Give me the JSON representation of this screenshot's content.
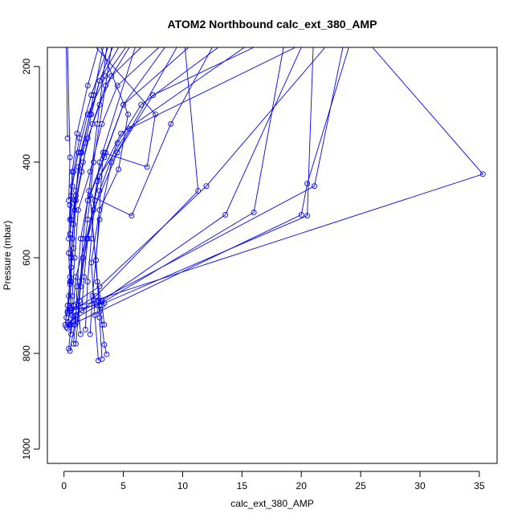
{
  "chart_data": {
    "type": "line",
    "title": "ATOM2 Northbound calc_ext_380_AMP",
    "xlabel": "calc_ext_380_AMP",
    "ylabel": "Pressure (mbar)",
    "xlim": [
      -1.4,
      36.5
    ],
    "ylim": [
      1030,
      160
    ],
    "y_reversed": true,
    "x_ticks": [
      0,
      5,
      10,
      15,
      20,
      25,
      30,
      35
    ],
    "y_ticks": [
      200,
      400,
      600,
      800,
      1000
    ],
    "grid": false,
    "legend": "none",
    "series_color": "#0000ff",
    "marker": "open-circle",
    "series": [
      {
        "x": [
          0.1,
          0.3,
          0.5,
          0.4,
          0.6,
          1.0,
          1.2,
          1.8,
          2.3,
          3.0,
          4.1
        ],
        "y": [
          740,
          700,
          650,
          590,
          520,
          470,
          410,
          360,
          300,
          230,
          160
        ]
      },
      {
        "x": [
          0.2,
          0.4,
          0.5,
          0.7,
          0.9,
          1.5,
          2.0,
          3.0,
          4.0,
          6.5
        ],
        "y": [
          725,
          680,
          640,
          560,
          500,
          420,
          350,
          280,
          220,
          160
        ]
      },
      {
        "x": [
          0.3,
          0.5,
          0.6,
          0.8,
          1.0,
          1.6,
          2.4,
          3.5,
          5.5
        ],
        "y": [
          748,
          710,
          620,
          580,
          480,
          400,
          320,
          240,
          160
        ]
      },
      {
        "x": [
          0.4,
          0.6,
          0.7,
          0.9,
          1.2,
          2.2,
          3.2,
          4.5,
          8.0
        ],
        "y": [
          790,
          740,
          680,
          600,
          500,
          420,
          320,
          240,
          160
        ]
      },
      {
        "x": [
          0.8,
          1.0,
          1.1,
          1.4,
          2.0,
          3.5,
          5.0,
          10.5
        ],
        "y": [
          780,
          730,
          660,
          560,
          480,
          380,
          280,
          160
        ]
      },
      {
        "x": [
          0.5,
          0.9,
          1.3,
          2.0,
          3.0,
          4.5,
          6.5,
          13.0
        ],
        "y": [
          795,
          740,
          650,
          560,
          460,
          360,
          280,
          160
        ]
      },
      {
        "x": [
          0.6,
          0.8,
          1.0,
          2.5,
          4.5,
          7.5,
          16.0
        ],
        "y": [
          760,
          700,
          640,
          500,
          380,
          260,
          160
        ]
      },
      {
        "x": [
          2.9,
          2.6,
          2.3,
          3.0,
          4.6,
          5.4,
          3.1
        ],
        "y": [
          815,
          720,
          610,
          500,
          415,
          300,
          160
        ]
      },
      {
        "x": [
          3.2,
          3.0,
          2.7,
          3.3,
          7.0,
          7.7,
          2.7
        ],
        "y": [
          812,
          725,
          605,
          380,
          410,
          300,
          160
        ]
      },
      {
        "x": [
          3.6,
          3.4,
          3.2,
          3.0,
          2.2,
          5.7,
          9.0,
          12.5
        ],
        "y": [
          802,
          782,
          740,
          700,
          470,
          512,
          320,
          160
        ]
      },
      {
        "x": [
          3.4,
          3.2,
          2.8,
          2.2,
          3.4,
          5.0,
          8.5
        ],
        "y": [
          740,
          700,
          650,
          470,
          390,
          280,
          160
        ]
      },
      {
        "x": [
          0.3,
          2.7,
          11.3,
          10.2
        ],
        "y": [
          715,
          680,
          460,
          160
        ]
      },
      {
        "x": [
          0.5,
          3.0,
          12.0,
          22.0
        ],
        "y": [
          700,
          660,
          450,
          160
        ]
      },
      {
        "x": [
          0.7,
          3.2,
          13.6,
          20.0
        ],
        "y": [
          720,
          690,
          510,
          160
        ]
      },
      {
        "x": [
          0.4,
          2.8,
          16.0,
          18.5
        ],
        "y": [
          735,
          700,
          505,
          160
        ]
      },
      {
        "x": [
          0.2,
          3.0,
          20.0,
          20.5,
          24.0
        ],
        "y": [
          745,
          712,
          510,
          445,
          160
        ]
      },
      {
        "x": [
          0.6,
          3.4,
          20.5,
          21.0
        ],
        "y": [
          710,
          695,
          512,
          160
        ]
      },
      {
        "x": [
          0.5,
          2.9,
          21.1,
          23.5
        ],
        "y": [
          705,
          690,
          450,
          160
        ]
      },
      {
        "x": [
          0.4,
          1.0,
          2.5,
          35.3,
          26.0
        ],
        "y": [
          740,
          720,
          690,
          425,
          160
        ]
      },
      {
        "x": [
          0.3,
          0.6,
          0.5,
          0.7,
          1.2,
          2.0,
          3.5,
          5.2
        ],
        "y": [
          712,
          650,
          550,
          450,
          380,
          300,
          220,
          160
        ]
      },
      {
        "x": [
          0.5,
          0.6,
          0.8,
          1.0,
          1.4,
          2.2,
          3.0,
          4.6
        ],
        "y": [
          655,
          600,
          530,
          460,
          380,
          300,
          230,
          160
        ]
      },
      {
        "x": [
          0.6,
          0.7,
          0.9,
          1.5,
          2.5,
          3.3
        ],
        "y": [
          650,
          560,
          480,
          380,
          260,
          160
        ]
      },
      {
        "x": [
          0.4,
          0.5,
          0.7,
          1.1,
          2.0,
          2.9
        ],
        "y": [
          560,
          490,
          420,
          340,
          240,
          160
        ]
      },
      {
        "x": [
          0.5,
          0.6,
          0.8,
          1.3,
          2.3,
          3.7
        ],
        "y": [
          520,
          470,
          420,
          350,
          260,
          160
        ]
      },
      {
        "x": [
          0.4,
          0.5,
          0.3
        ],
        "y": [
          480,
          390,
          160
        ]
      },
      {
        "x": [
          0.3,
          0.2
        ],
        "y": [
          350,
          160
        ]
      },
      {
        "x": [
          1.4,
          1.2,
          1.6,
          2.0,
          2.5,
          4.0
        ],
        "y": [
          760,
          700,
          600,
          520,
          400,
          160
        ]
      },
      {
        "x": [
          1.0,
          1.3,
          1.6,
          2.1,
          2.8,
          3.6
        ],
        "y": [
          780,
          690,
          560,
          460,
          320,
          160
        ]
      },
      {
        "x": [
          1.8,
          2.0,
          2.3,
          2.6,
          3.0,
          6.0
        ],
        "y": [
          750,
          650,
          560,
          480,
          400,
          160
        ]
      },
      {
        "x": [
          2.2,
          2.4,
          3.0,
          4.0,
          9.5
        ],
        "y": [
          760,
          680,
          520,
          400,
          160
        ]
      },
      {
        "x": [
          1.5,
          1.7,
          2.0,
          2.8,
          4.8,
          15.2
        ],
        "y": [
          710,
          640,
          560,
          440,
          340,
          160
        ]
      },
      {
        "x": [
          1.1,
          1.4,
          1.9,
          3.0,
          5.5,
          19.5
        ],
        "y": [
          735,
          660,
          560,
          430,
          330,
          160
        ]
      }
    ]
  }
}
